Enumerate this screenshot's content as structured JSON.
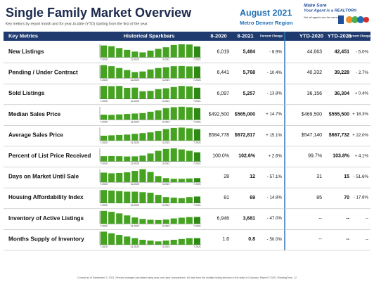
{
  "header": {
    "title": "Single Family Market Overview",
    "subtitle": "Key metrics by report month and for year-to-date (YTD) starting from the first of the year.",
    "month": "August 2021",
    "region": "Metro Denver Region",
    "logo": {
      "line1": "Make Sure",
      "line2": "Your Agent is a REALTOR®",
      "tagline": "Not all agents are the same!"
    }
  },
  "table": {
    "columns": [
      "Key Metrics",
      "Historical Sparkbars",
      "8-2020",
      "8-2021",
      "Percent Change",
      "YTD-2020",
      "YTD-2021",
      "Percent Change"
    ],
    "spark_axis": [
      "7-2020",
      "11-2020",
      "3-2021",
      "7-2021"
    ],
    "rows": [
      {
        "metric": "New Listings",
        "sparkbars": [
          6019,
          5600,
          4700,
          3800,
          2900,
          2500,
          3400,
          4300,
          5100,
          6300,
          6600,
          6500,
          5484
        ],
        "cells": [
          "6,019",
          "5,484",
          "- 8.9%",
          "44,663",
          "42,451",
          "- 5.0%"
        ]
      },
      {
        "metric": "Pending / Under Contract",
        "sparkbars": [
          6441,
          5900,
          5000,
          4000,
          3000,
          3300,
          4300,
          5000,
          5400,
          5900,
          6000,
          5800,
          5768
        ],
        "cells": [
          "6,441",
          "5,768",
          "- 10.4%",
          "40,332",
          "39,228",
          "- 2.7%"
        ]
      },
      {
        "metric": "Sold Listings",
        "sparkbars": [
          6097,
          6000,
          6100,
          5200,
          5300,
          3600,
          3800,
          4600,
          5000,
          5600,
          6100,
          5900,
          5257
        ],
        "cells": [
          "6,097",
          "5,257",
          "- 13.8%",
          "36,156",
          "36,304",
          "+ 0.4%"
        ]
      },
      {
        "metric": "Median Sales Price",
        "sparkbars": [
          492500,
          490000,
          495000,
          500000,
          505000,
          510000,
          525000,
          540000,
          565000,
          575000,
          580000,
          575000,
          565000
        ],
        "cells": [
          "$492,500",
          "$565,000",
          "+ 14.7%",
          "$469,500",
          "$555,500",
          "+ 18.3%"
        ]
      },
      {
        "metric": "Average Sales Price",
        "sparkbars": [
          584778,
          590000,
          595000,
          600000,
          610000,
          620000,
          630000,
          650000,
          675000,
          690000,
          695000,
          685000,
          672817
        ],
        "cells": [
          "$584,778",
          "$672,817",
          "+ 15.1%",
          "$547,140",
          "$667,732",
          "+ 22.0%"
        ]
      },
      {
        "metric": "Percent of List Price Received",
        "sparkbars": [
          100.0,
          100.1,
          100.0,
          99.8,
          99.9,
          100.4,
          101.8,
          103.6,
          104.8,
          105.2,
          104.5,
          103.6,
          102.6
        ],
        "cells": [
          "100.0%",
          "102.6%",
          "+ 2.6%",
          "99.7%",
          "103.8%",
          "+ 4.1%"
        ]
      },
      {
        "metric": "Days on Market Until Sale",
        "sparkbars": [
          28,
          26,
          27,
          29,
          33,
          38,
          30,
          18,
          12,
          10,
          10,
          11,
          12
        ],
        "cells": [
          "28",
          "12",
          "- 57.1%",
          "31",
          "15",
          "- 51.6%"
        ]
      },
      {
        "metric": "Housing Affordability Index",
        "sparkbars": [
          81,
          80,
          79,
          78,
          78,
          77,
          76,
          72,
          68,
          67,
          66,
          68,
          69
        ],
        "cells": [
          "81",
          "69",
          "- 14.8%",
          "85",
          "70",
          "- 17.6%"
        ]
      },
      {
        "metric": "Inventory of Active Listings",
        "sparkbars": [
          6946,
          6400,
          5600,
          4500,
          3400,
          2600,
          2200,
          2000,
          2300,
          2900,
          3300,
          3600,
          3681
        ],
        "cells": [
          "6,946",
          "3,681",
          "- 47.0%",
          "--",
          "--",
          "--"
        ]
      },
      {
        "metric": "Months Supply of Inventory",
        "sparkbars": [
          1.6,
          1.4,
          1.2,
          1.0,
          0.8,
          0.6,
          0.5,
          0.4,
          0.5,
          0.6,
          0.7,
          0.8,
          0.8
        ],
        "cells": [
          "1.6",
          "0.8",
          "- 50.0%",
          "--",
          "--",
          "--"
        ]
      }
    ]
  },
  "footer": "Current as of September 3, 2021. Percent changes calculated using year-over-year comparisons. All data from the multiple listing services in the state of Colorado. Report © 2021 ShowingTime. | 2"
}
